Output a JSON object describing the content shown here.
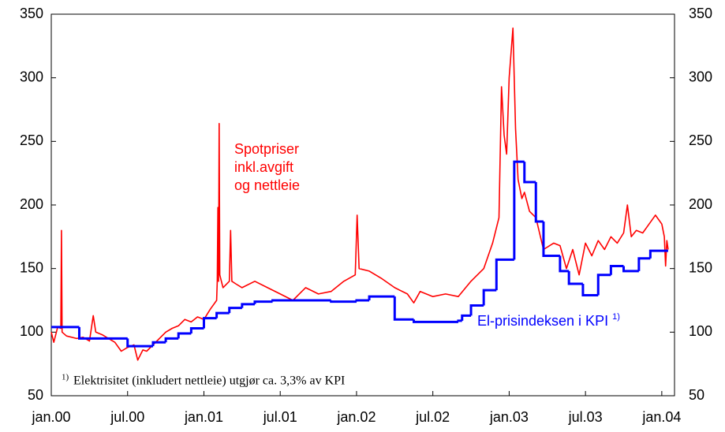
{
  "chart_data": {
    "type": "line",
    "xlim": [
      0,
      49
    ],
    "xticks": [
      {
        "value": 0,
        "label": "jan.00"
      },
      {
        "value": 6,
        "label": "jul.00"
      },
      {
        "value": 12,
        "label": "jan.01"
      },
      {
        "value": 18,
        "label": "jul.01"
      },
      {
        "value": 24,
        "label": "jan.02"
      },
      {
        "value": 30,
        "label": "jul.02"
      },
      {
        "value": 36,
        "label": "jan.03"
      },
      {
        "value": 42,
        "label": "jul.03"
      },
      {
        "value": 48,
        "label": "jan.04"
      }
    ],
    "ylim": [
      50,
      350
    ],
    "yticks": [
      50,
      100,
      150,
      200,
      250,
      300,
      350
    ],
    "y2lim": [
      50,
      350
    ],
    "y2ticks": [
      50,
      100,
      150,
      200,
      250,
      300,
      350
    ],
    "series": [
      {
        "name": "Spotpriser inkl.avgift og nettleie",
        "color": "#ff0000",
        "x": [
          0,
          0.2,
          0.5,
          0.75,
          0.8,
          0.85,
          1.2,
          2,
          2.5,
          3,
          3.3,
          3.5,
          4,
          5,
          5.5,
          6,
          6.5,
          6.8,
          7.2,
          7.5,
          8,
          8.5,
          9,
          9.5,
          10,
          10.5,
          11,
          11.5,
          12,
          12.5,
          13,
          13.05,
          13.1,
          13.15,
          13.2,
          13.25,
          13.5,
          14,
          14.1,
          14.2,
          14.5,
          15,
          16,
          17,
          18,
          19,
          20,
          21,
          22,
          23,
          23.9,
          24.05,
          24.2,
          25,
          26,
          27,
          28,
          28.5,
          29,
          30,
          31,
          32,
          33,
          34,
          34.7,
          35.2,
          35.4,
          35.6,
          35.8,
          36,
          36.3,
          36.5,
          36.7,
          37,
          37.2,
          37.6,
          38.1,
          38.7,
          39.5,
          40,
          40.5,
          41,
          41.5,
          42,
          42.5,
          43,
          43.5,
          44,
          44.5,
          45,
          45.3,
          45.6,
          46,
          46.5,
          47,
          47.5,
          48,
          48.2,
          48.3,
          48.4,
          48.5
        ],
        "values": [
          100,
          92,
          104,
          103,
          180,
          100,
          97,
          95,
          96,
          93,
          113,
          100,
          98,
          92,
          85,
          88,
          90,
          78,
          86,
          85,
          90,
          95,
          100,
          103,
          105,
          110,
          108,
          112,
          110,
          118,
          125,
          140,
          198,
          140,
          264,
          145,
          135,
          140,
          180,
          140,
          138,
          135,
          140,
          135,
          130,
          125,
          135,
          130,
          132,
          140,
          145,
          192,
          150,
          148,
          142,
          135,
          130,
          123,
          132,
          128,
          130,
          128,
          140,
          150,
          170,
          190,
          293,
          255,
          240,
          300,
          339,
          260,
          220,
          205,
          210,
          195,
          190,
          165,
          170,
          168,
          150,
          165,
          145,
          170,
          160,
          172,
          165,
          175,
          170,
          178,
          200,
          175,
          180,
          178,
          185,
          192,
          185,
          175,
          152,
          172,
          165
        ]
      },
      {
        "name": "El-prisindeksen i KPI",
        "color": "#0000ff",
        "x": [
          0,
          2.2,
          6,
          8,
          9,
          10,
          11,
          12,
          13,
          14,
          15,
          16,
          17.4,
          22,
          24,
          25,
          27,
          28.5,
          32,
          32.3,
          33,
          34,
          35,
          36.4,
          37.2,
          38.1,
          38.7,
          40,
          40.7,
          41.8,
          43,
          44,
          45,
          46.2,
          47.1,
          48.5
        ],
        "values": [
          104,
          95,
          89,
          92,
          95,
          99,
          103,
          111,
          115,
          119,
          122,
          124,
          125,
          124,
          125,
          128,
          110,
          108,
          109,
          113,
          121,
          133,
          157,
          234,
          218,
          187,
          160,
          148,
          138,
          129,
          145,
          152,
          148,
          158,
          164,
          164
        ]
      }
    ],
    "superscript": "1)",
    "footnote": "Elektrisitet (inkludert nettleie) utgjør ca. 3,3% av KPI"
  }
}
